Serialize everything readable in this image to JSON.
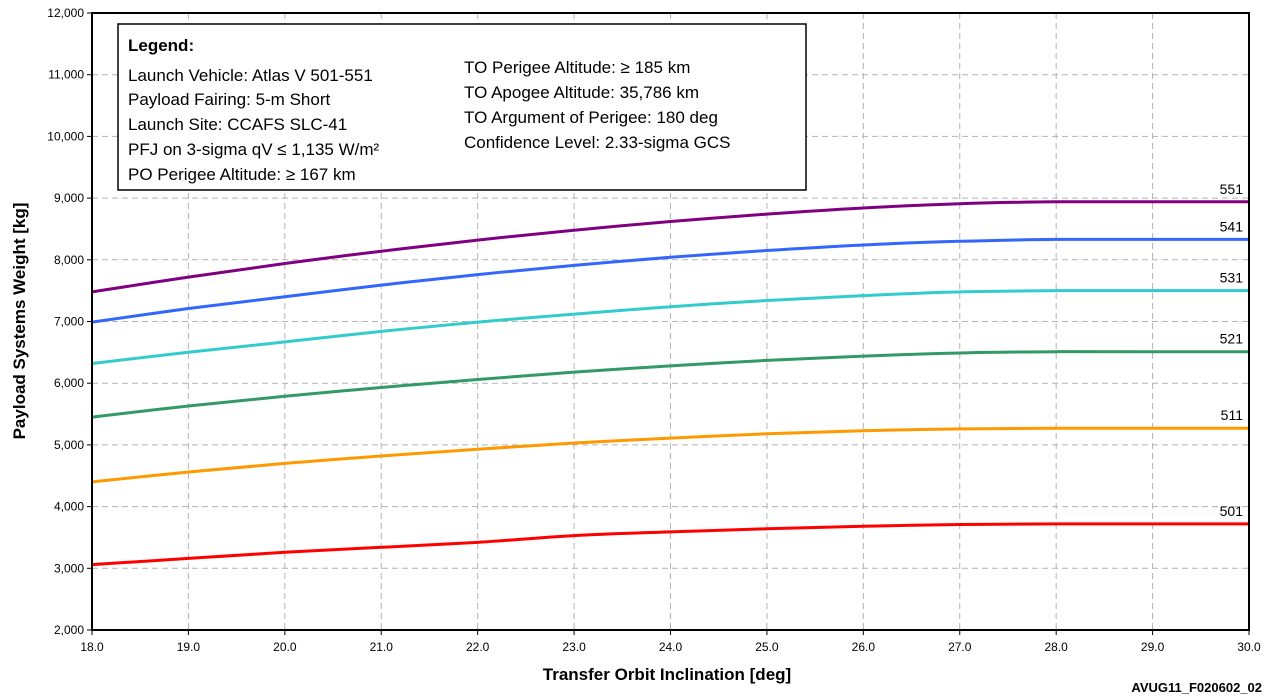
{
  "chart_data": {
    "type": "line",
    "xlabel": "Transfer Orbit Inclination [deg]",
    "ylabel": "Payload Systems Weight [kg]",
    "xlim": [
      18.0,
      30.0
    ],
    "ylim": [
      2000,
      12000
    ],
    "x_ticks": [
      "18.0",
      "19.0",
      "20.0",
      "21.0",
      "22.0",
      "23.0",
      "24.0",
      "25.0",
      "26.0",
      "27.0",
      "28.0",
      "29.0",
      "30.0"
    ],
    "y_ticks": [
      "2,000",
      "3,000",
      "4,000",
      "5,000",
      "6,000",
      "7,000",
      "8,000",
      "9,000",
      "10,000",
      "11,000",
      "12,000"
    ],
    "grid": true,
    "x": [
      18,
      19,
      20,
      21,
      22,
      23,
      24,
      25,
      26,
      27,
      28,
      29,
      30
    ],
    "series": [
      {
        "name": "551",
        "color": "#800080",
        "values": [
          7480,
          7720,
          7940,
          8140,
          8320,
          8480,
          8620,
          8740,
          8840,
          8910,
          8940,
          8940,
          8940
        ]
      },
      {
        "name": "541",
        "color": "#3366ff",
        "values": [
          6990,
          7210,
          7400,
          7590,
          7760,
          7910,
          8040,
          8150,
          8240,
          8300,
          8330,
          8330,
          8330
        ]
      },
      {
        "name": "531",
        "color": "#33cccc",
        "values": [
          6320,
          6500,
          6670,
          6840,
          6990,
          7120,
          7240,
          7340,
          7420,
          7480,
          7500,
          7500,
          7500
        ]
      },
      {
        "name": "521",
        "color": "#339966",
        "values": [
          5450,
          5630,
          5790,
          5930,
          6060,
          6180,
          6280,
          6370,
          6440,
          6490,
          6510,
          6510,
          6510
        ]
      },
      {
        "name": "511",
        "color": "#ff9900",
        "values": [
          4400,
          4560,
          4700,
          4820,
          4930,
          5030,
          5110,
          5180,
          5230,
          5260,
          5270,
          5270,
          5270
        ]
      },
      {
        "name": "501",
        "color": "#ff0000",
        "values": [
          3060,
          3160,
          3260,
          3340,
          3420,
          3530,
          3590,
          3640,
          3680,
          3710,
          3720,
          3720,
          3720
        ]
      }
    ],
    "legend": {
      "title": "Legend:",
      "placement": "top-left",
      "left_column": [
        "Launch Vehicle: Atlas V 501-551",
        "Payload Fairing: 5-m Short",
        "Launch Site: CCAFS SLC-41",
        "PFJ on 3-sigma qV ≤ 1,135 W/m²",
        "PO Perigee Altitude: ≥ 167 km"
      ],
      "right_column": [
        "TO Perigee Altitude: ≥ 185 km",
        "TO Apogee Altitude: 35,786 km",
        "TO Argument of Perigee: 180 deg",
        "Confidence Level: 2.33-sigma GCS"
      ]
    },
    "figure_id": "AVUG11_F020602_02"
  }
}
